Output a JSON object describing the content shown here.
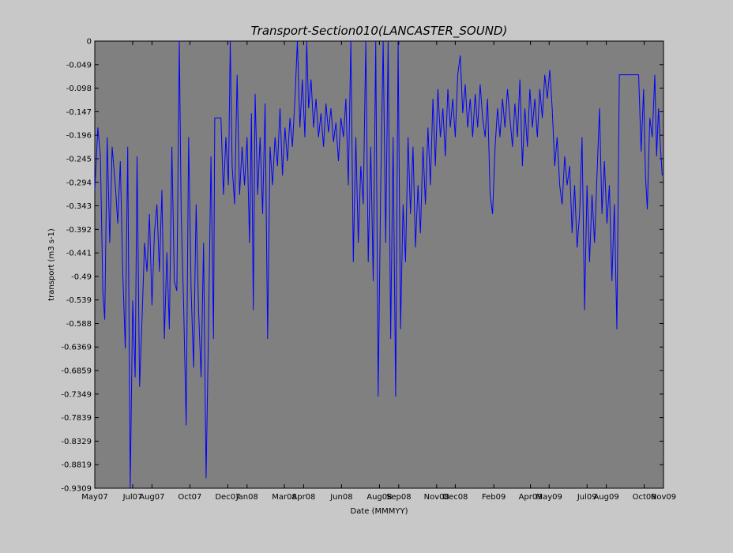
{
  "chart_data": {
    "type": "line",
    "title": "Transport-Section010(LANCASTER_SOUND)",
    "xlabel": "Date (MMMYY)",
    "ylabel": "transport (m3 s-1)",
    "ylim": [
      -0.9309,
      0
    ],
    "xlim": [
      "2007-05-01",
      "2009-11-01"
    ],
    "x_tick_labels": [
      "May07",
      "Jul07",
      "Aug07",
      "Oct07",
      "Dec07",
      "Jan08",
      "Mar08",
      "Apr08",
      "Jun08",
      "Aug08",
      "Sep08",
      "Nov08",
      "Dec08",
      "Feb09",
      "Apr09",
      "May09",
      "Jul09",
      "Aug09",
      "Oct09",
      "Nov09"
    ],
    "x_tick_dates": [
      "2007-05-01",
      "2007-07-01",
      "2007-08-01",
      "2007-10-01",
      "2007-12-01",
      "2008-01-01",
      "2008-03-01",
      "2008-04-01",
      "2008-06-01",
      "2008-08-01",
      "2008-09-01",
      "2008-11-01",
      "2008-12-01",
      "2009-02-01",
      "2009-04-01",
      "2009-05-01",
      "2009-07-01",
      "2009-08-01",
      "2009-10-01",
      "2009-11-01"
    ],
    "y_tick_labels": [
      "0",
      "-0.049",
      "-0.098",
      "-0.147",
      "-0.196",
      "-0.245",
      "-0.294",
      "-0.343",
      "-0.392",
      "-0.441",
      "-0.49",
      "-0.539",
      "-0.588",
      "-0.6369",
      "-0.6859",
      "-0.7349",
      "-0.7839",
      "-0.8329",
      "-0.8819",
      "-0.9309"
    ],
    "y_tick_values": [
      0,
      -0.049,
      -0.098,
      -0.147,
      -0.196,
      -0.245,
      -0.294,
      -0.343,
      -0.392,
      -0.441,
      -0.49,
      -0.539,
      -0.588,
      -0.6369,
      -0.6859,
      -0.7349,
      -0.7839,
      -0.8329,
      -0.8819,
      -0.9309
    ],
    "grid": false,
    "series": [
      {
        "color": "#0000ff",
        "points": [
          [
            "2007-05-01",
            -0.31
          ],
          [
            "2007-05-06",
            -0.18
          ],
          [
            "2007-05-10",
            -0.24
          ],
          [
            "2007-05-14",
            -0.52
          ],
          [
            "2007-05-17",
            -0.58
          ],
          [
            "2007-05-21",
            -0.2
          ],
          [
            "2007-05-25",
            -0.42
          ],
          [
            "2007-05-29",
            -0.22
          ],
          [
            "2007-06-03",
            -0.3
          ],
          [
            "2007-06-07",
            -0.38
          ],
          [
            "2007-06-11",
            -0.25
          ],
          [
            "2007-06-15",
            -0.48
          ],
          [
            "2007-06-19",
            -0.64
          ],
          [
            "2007-06-23",
            -0.22
          ],
          [
            "2007-06-27",
            -0.93
          ],
          [
            "2007-07-01",
            -0.54
          ],
          [
            "2007-07-05",
            -0.7
          ],
          [
            "2007-07-08",
            -0.24
          ],
          [
            "2007-07-12",
            -0.72
          ],
          [
            "2007-07-16",
            -0.58
          ],
          [
            "2007-07-20",
            -0.42
          ],
          [
            "2007-07-24",
            -0.48
          ],
          [
            "2007-07-28",
            -0.36
          ],
          [
            "2007-08-01",
            -0.55
          ],
          [
            "2007-08-05",
            -0.4
          ],
          [
            "2007-08-09",
            -0.34
          ],
          [
            "2007-08-13",
            -0.48
          ],
          [
            "2007-08-17",
            -0.31
          ],
          [
            "2007-08-21",
            -0.62
          ],
          [
            "2007-08-25",
            -0.44
          ],
          [
            "2007-08-29",
            -0.6
          ],
          [
            "2007-09-02",
            -0.22
          ],
          [
            "2007-09-06",
            -0.5
          ],
          [
            "2007-09-10",
            -0.52
          ],
          [
            "2007-09-14",
            0.0
          ],
          [
            "2007-09-17",
            -0.36
          ],
          [
            "2007-09-21",
            -0.55
          ],
          [
            "2007-09-25",
            -0.8
          ],
          [
            "2007-09-29",
            -0.2
          ],
          [
            "2007-10-03",
            -0.52
          ],
          [
            "2007-10-07",
            -0.68
          ],
          [
            "2007-10-11",
            -0.34
          ],
          [
            "2007-10-15",
            -0.56
          ],
          [
            "2007-10-19",
            -0.7
          ],
          [
            "2007-10-23",
            -0.42
          ],
          [
            "2007-10-27",
            -0.91
          ],
          [
            "2007-10-31",
            -0.6
          ],
          [
            "2007-11-04",
            -0.24
          ],
          [
            "2007-11-08",
            -0.62
          ],
          [
            "2007-11-10",
            -0.16
          ],
          [
            "2007-11-20",
            -0.16
          ],
          [
            "2007-11-24",
            -0.32
          ],
          [
            "2007-11-28",
            -0.2
          ],
          [
            "2007-12-02",
            -0.3
          ],
          [
            "2007-12-05",
            0.0
          ],
          [
            "2007-12-08",
            -0.26
          ],
          [
            "2007-12-12",
            -0.34
          ],
          [
            "2007-12-16",
            -0.07
          ],
          [
            "2007-12-20",
            -0.32
          ],
          [
            "2007-12-24",
            -0.22
          ],
          [
            "2007-12-28",
            -0.3
          ],
          [
            "2008-01-01",
            -0.2
          ],
          [
            "2008-01-05",
            -0.42
          ],
          [
            "2008-01-08",
            -0.15
          ],
          [
            "2008-01-11",
            -0.56
          ],
          [
            "2008-01-14",
            -0.11
          ],
          [
            "2008-01-18",
            -0.32
          ],
          [
            "2008-01-22",
            -0.2
          ],
          [
            "2008-01-26",
            -0.36
          ],
          [
            "2008-01-30",
            -0.13
          ],
          [
            "2008-02-03",
            -0.62
          ],
          [
            "2008-02-07",
            -0.22
          ],
          [
            "2008-02-11",
            -0.3
          ],
          [
            "2008-02-15",
            -0.2
          ],
          [
            "2008-02-19",
            -0.26
          ],
          [
            "2008-02-23",
            -0.14
          ],
          [
            "2008-02-27",
            -0.28
          ],
          [
            "2008-03-02",
            -0.18
          ],
          [
            "2008-03-06",
            -0.25
          ],
          [
            "2008-03-10",
            -0.16
          ],
          [
            "2008-03-14",
            -0.22
          ],
          [
            "2008-03-18",
            -0.12
          ],
          [
            "2008-03-22",
            0.0
          ],
          [
            "2008-03-26",
            -0.18
          ],
          [
            "2008-03-30",
            -0.08
          ],
          [
            "2008-04-03",
            -0.2
          ],
          [
            "2008-04-06",
            0.0
          ],
          [
            "2008-04-09",
            -0.14
          ],
          [
            "2008-04-13",
            -0.08
          ],
          [
            "2008-04-17",
            -0.18
          ],
          [
            "2008-04-21",
            -0.12
          ],
          [
            "2008-04-25",
            -0.2
          ],
          [
            "2008-04-29",
            -0.15
          ],
          [
            "2008-05-03",
            -0.22
          ],
          [
            "2008-05-07",
            -0.13
          ],
          [
            "2008-05-11",
            -0.19
          ],
          [
            "2008-05-15",
            -0.14
          ],
          [
            "2008-05-19",
            -0.21
          ],
          [
            "2008-05-23",
            -0.17
          ],
          [
            "2008-05-27",
            -0.25
          ],
          [
            "2008-05-31",
            -0.16
          ],
          [
            "2008-06-04",
            -0.2
          ],
          [
            "2008-06-08",
            -0.12
          ],
          [
            "2008-06-12",
            -0.3
          ],
          [
            "2008-06-16",
            0.0
          ],
          [
            "2008-06-20",
            -0.46
          ],
          [
            "2008-06-24",
            -0.2
          ],
          [
            "2008-06-28",
            -0.42
          ],
          [
            "2008-07-02",
            -0.26
          ],
          [
            "2008-07-06",
            -0.34
          ],
          [
            "2008-07-10",
            0.0
          ],
          [
            "2008-07-14",
            -0.46
          ],
          [
            "2008-07-18",
            -0.22
          ],
          [
            "2008-07-22",
            -0.5
          ],
          [
            "2008-07-26",
            0.0
          ],
          [
            "2008-07-30",
            -0.74
          ],
          [
            "2008-08-03",
            -0.3
          ],
          [
            "2008-08-07",
            0.0
          ],
          [
            "2008-08-11",
            -0.42
          ],
          [
            "2008-08-15",
            0.0
          ],
          [
            "2008-08-19",
            -0.62
          ],
          [
            "2008-08-23",
            -0.2
          ],
          [
            "2008-08-27",
            -0.74
          ],
          [
            "2008-08-31",
            0.0
          ],
          [
            "2008-09-04",
            -0.6
          ],
          [
            "2008-09-08",
            -0.34
          ],
          [
            "2008-09-12",
            -0.46
          ],
          [
            "2008-09-16",
            -0.2
          ],
          [
            "2008-09-20",
            -0.36
          ],
          [
            "2008-09-24",
            -0.22
          ],
          [
            "2008-09-28",
            -0.43
          ],
          [
            "2008-10-02",
            -0.3
          ],
          [
            "2008-10-06",
            -0.4
          ],
          [
            "2008-10-10",
            -0.22
          ],
          [
            "2008-10-14",
            -0.34
          ],
          [
            "2008-10-18",
            -0.18
          ],
          [
            "2008-10-22",
            -0.3
          ],
          [
            "2008-10-26",
            -0.12
          ],
          [
            "2008-10-30",
            -0.26
          ],
          [
            "2008-11-03",
            -0.1
          ],
          [
            "2008-11-07",
            -0.2
          ],
          [
            "2008-11-11",
            -0.14
          ],
          [
            "2008-11-15",
            -0.24
          ],
          [
            "2008-11-19",
            -0.1
          ],
          [
            "2008-11-23",
            -0.18
          ],
          [
            "2008-11-27",
            -0.12
          ],
          [
            "2008-12-01",
            -0.2
          ],
          [
            "2008-12-05",
            -0.07
          ],
          [
            "2008-12-09",
            -0.03
          ],
          [
            "2008-12-13",
            -0.15
          ],
          [
            "2008-12-17",
            -0.09
          ],
          [
            "2008-12-21",
            -0.18
          ],
          [
            "2008-12-25",
            -0.12
          ],
          [
            "2008-12-29",
            -0.2
          ],
          [
            "2009-01-02",
            -0.11
          ],
          [
            "2009-01-06",
            -0.18
          ],
          [
            "2009-01-10",
            -0.09
          ],
          [
            "2009-01-14",
            -0.16
          ],
          [
            "2009-01-18",
            -0.2
          ],
          [
            "2009-01-22",
            -0.12
          ],
          [
            "2009-01-26",
            -0.32
          ],
          [
            "2009-01-30",
            -0.36
          ],
          [
            "2009-02-03",
            -0.22
          ],
          [
            "2009-02-07",
            -0.14
          ],
          [
            "2009-02-11",
            -0.2
          ],
          [
            "2009-02-15",
            -0.12
          ],
          [
            "2009-02-19",
            -0.18
          ],
          [
            "2009-02-23",
            -0.1
          ],
          [
            "2009-02-27",
            -0.16
          ],
          [
            "2009-03-03",
            -0.22
          ],
          [
            "2009-03-07",
            -0.13
          ],
          [
            "2009-03-11",
            -0.2
          ],
          [
            "2009-03-15",
            -0.08
          ],
          [
            "2009-03-19",
            -0.26
          ],
          [
            "2009-03-23",
            -0.14
          ],
          [
            "2009-03-27",
            -0.22
          ],
          [
            "2009-03-31",
            -0.1
          ],
          [
            "2009-04-04",
            -0.18
          ],
          [
            "2009-04-08",
            -0.12
          ],
          [
            "2009-04-12",
            -0.2
          ],
          [
            "2009-04-16",
            -0.1
          ],
          [
            "2009-04-20",
            -0.16
          ],
          [
            "2009-04-24",
            -0.07
          ],
          [
            "2009-04-28",
            -0.12
          ],
          [
            "2009-05-02",
            -0.06
          ],
          [
            "2009-05-06",
            -0.14
          ],
          [
            "2009-05-10",
            -0.26
          ],
          [
            "2009-05-14",
            -0.2
          ],
          [
            "2009-05-18",
            -0.3
          ],
          [
            "2009-05-22",
            -0.34
          ],
          [
            "2009-05-26",
            -0.24
          ],
          [
            "2009-05-30",
            -0.3
          ],
          [
            "2009-06-03",
            -0.26
          ],
          [
            "2009-06-07",
            -0.4
          ],
          [
            "2009-06-11",
            -0.3
          ],
          [
            "2009-06-15",
            -0.43
          ],
          [
            "2009-06-19",
            -0.36
          ],
          [
            "2009-06-23",
            -0.2
          ],
          [
            "2009-06-27",
            -0.56
          ],
          [
            "2009-07-01",
            -0.3
          ],
          [
            "2009-07-05",
            -0.46
          ],
          [
            "2009-07-09",
            -0.32
          ],
          [
            "2009-07-13",
            -0.42
          ],
          [
            "2009-07-17",
            -0.28
          ],
          [
            "2009-07-21",
            -0.14
          ],
          [
            "2009-07-25",
            -0.36
          ],
          [
            "2009-07-29",
            -0.25
          ],
          [
            "2009-08-02",
            -0.38
          ],
          [
            "2009-08-06",
            -0.3
          ],
          [
            "2009-08-10",
            -0.5
          ],
          [
            "2009-08-14",
            -0.34
          ],
          [
            "2009-08-18",
            -0.6
          ],
          [
            "2009-08-22",
            -0.07
          ],
          [
            "2009-09-15",
            -0.07
          ],
          [
            "2009-09-22",
            -0.07
          ],
          [
            "2009-09-26",
            -0.23
          ],
          [
            "2009-09-30",
            -0.1
          ],
          [
            "2009-10-03",
            -0.28
          ],
          [
            "2009-10-06",
            -0.35
          ],
          [
            "2009-10-10",
            -0.16
          ],
          [
            "2009-10-14",
            -0.2
          ],
          [
            "2009-10-18",
            -0.07
          ],
          [
            "2009-10-21",
            -0.24
          ],
          [
            "2009-10-24",
            -0.14
          ],
          [
            "2009-10-27",
            -0.22
          ],
          [
            "2009-10-30",
            -0.28
          ]
        ]
      }
    ]
  }
}
